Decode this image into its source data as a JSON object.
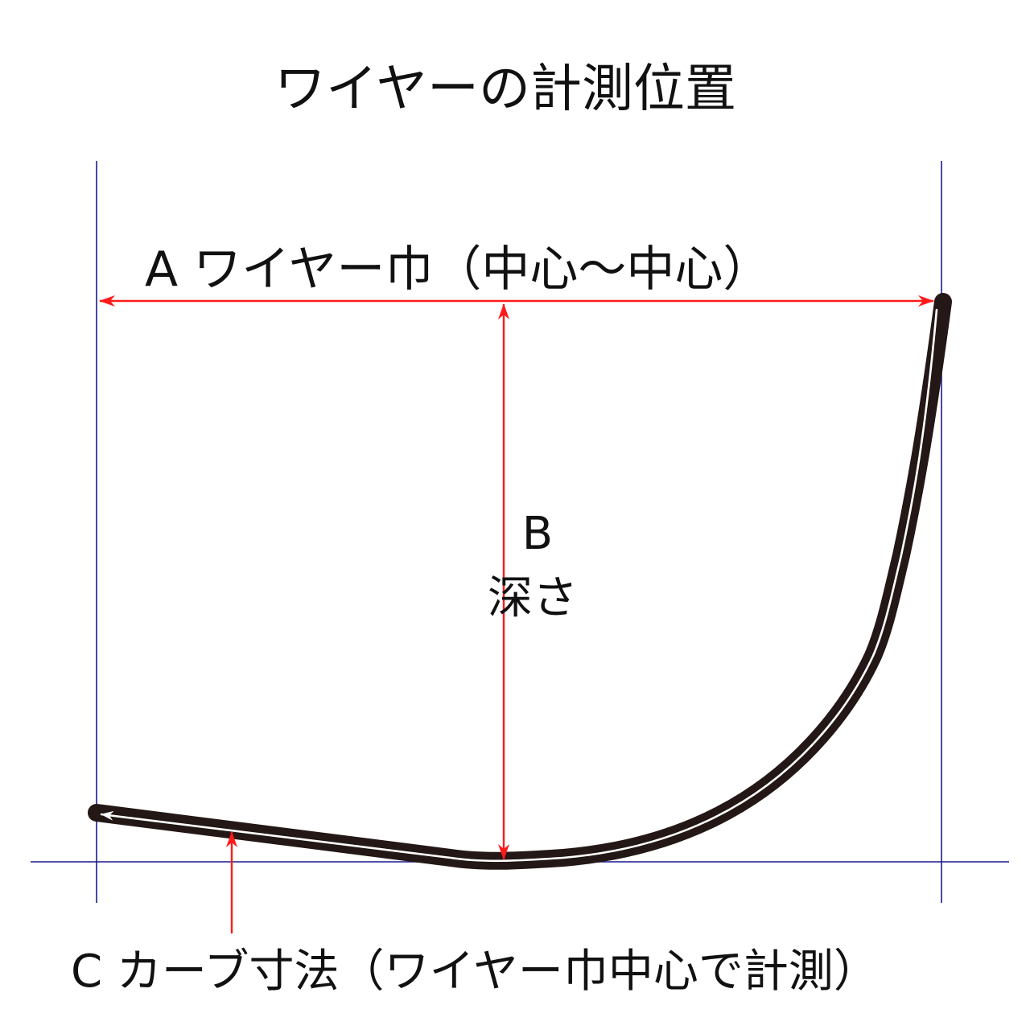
{
  "title": "ワイヤーの計測位置",
  "labels": {
    "a": "A ワイヤー巾（中心～中心）",
    "b_letter": "B",
    "b_word": "深さ",
    "c": "C カーブ寸法（ワイヤー巾中心で計測）"
  },
  "colors": {
    "guide_line": "#1a1a8c",
    "dimension_arrow": "#ff1a1a",
    "wire": "#231815",
    "wire_center": "#ffffff"
  }
}
